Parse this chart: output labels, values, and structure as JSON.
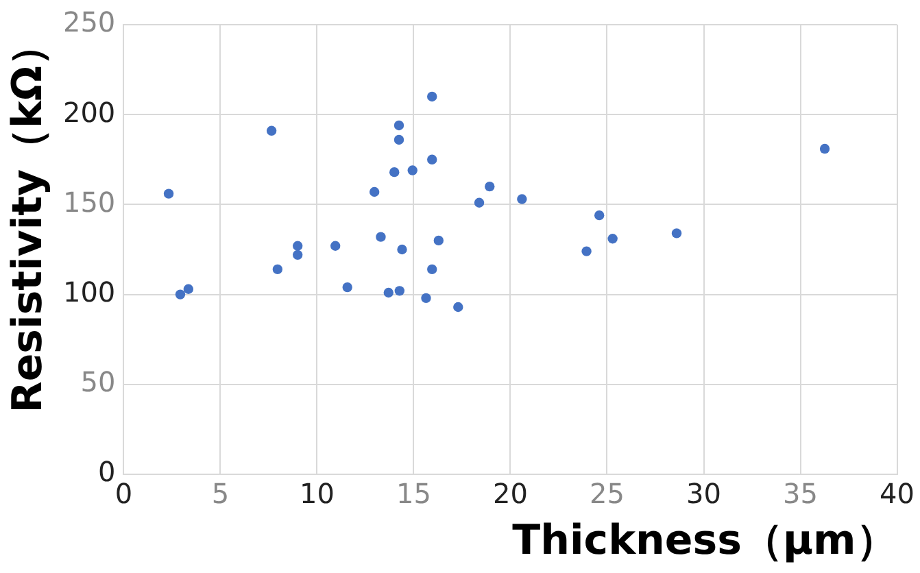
{
  "chart_data": {
    "type": "scatter",
    "xlabel": "Thickness（μm）",
    "ylabel": "Resistivity（kΩ）",
    "x": [
      2.33,
      2.93,
      3.35,
      7.65,
      7.96,
      9.0,
      9.0,
      10.95,
      11.57,
      12.97,
      13.3,
      13.7,
      14.0,
      14.24,
      14.24,
      14.27,
      14.4,
      14.94,
      15.64,
      15.95,
      15.95,
      15.95,
      16.29,
      17.3,
      18.39,
      18.93,
      20.6,
      24.6,
      23.94,
      25.29,
      28.6,
      36.26
    ],
    "series": [
      {
        "color": "#4472c4",
        "values": [
          156,
          100,
          103,
          191,
          114,
          127,
          122,
          127,
          104,
          157,
          132,
          101,
          168,
          194,
          186,
          102,
          125,
          169,
          98,
          210,
          175,
          114,
          130,
          93,
          151,
          160,
          153,
          144,
          124,
          131,
          134,
          181
        ]
      }
    ],
    "xlim": [
      0,
      40
    ],
    "xticks": [
      0,
      5,
      10,
      15,
      20,
      25,
      30,
      35,
      40
    ],
    "ylim": [
      0,
      250
    ],
    "yticks": [
      0,
      50,
      100,
      150,
      200,
      250
    ],
    "grid": true,
    "legend": false,
    "marker": "circle"
  }
}
